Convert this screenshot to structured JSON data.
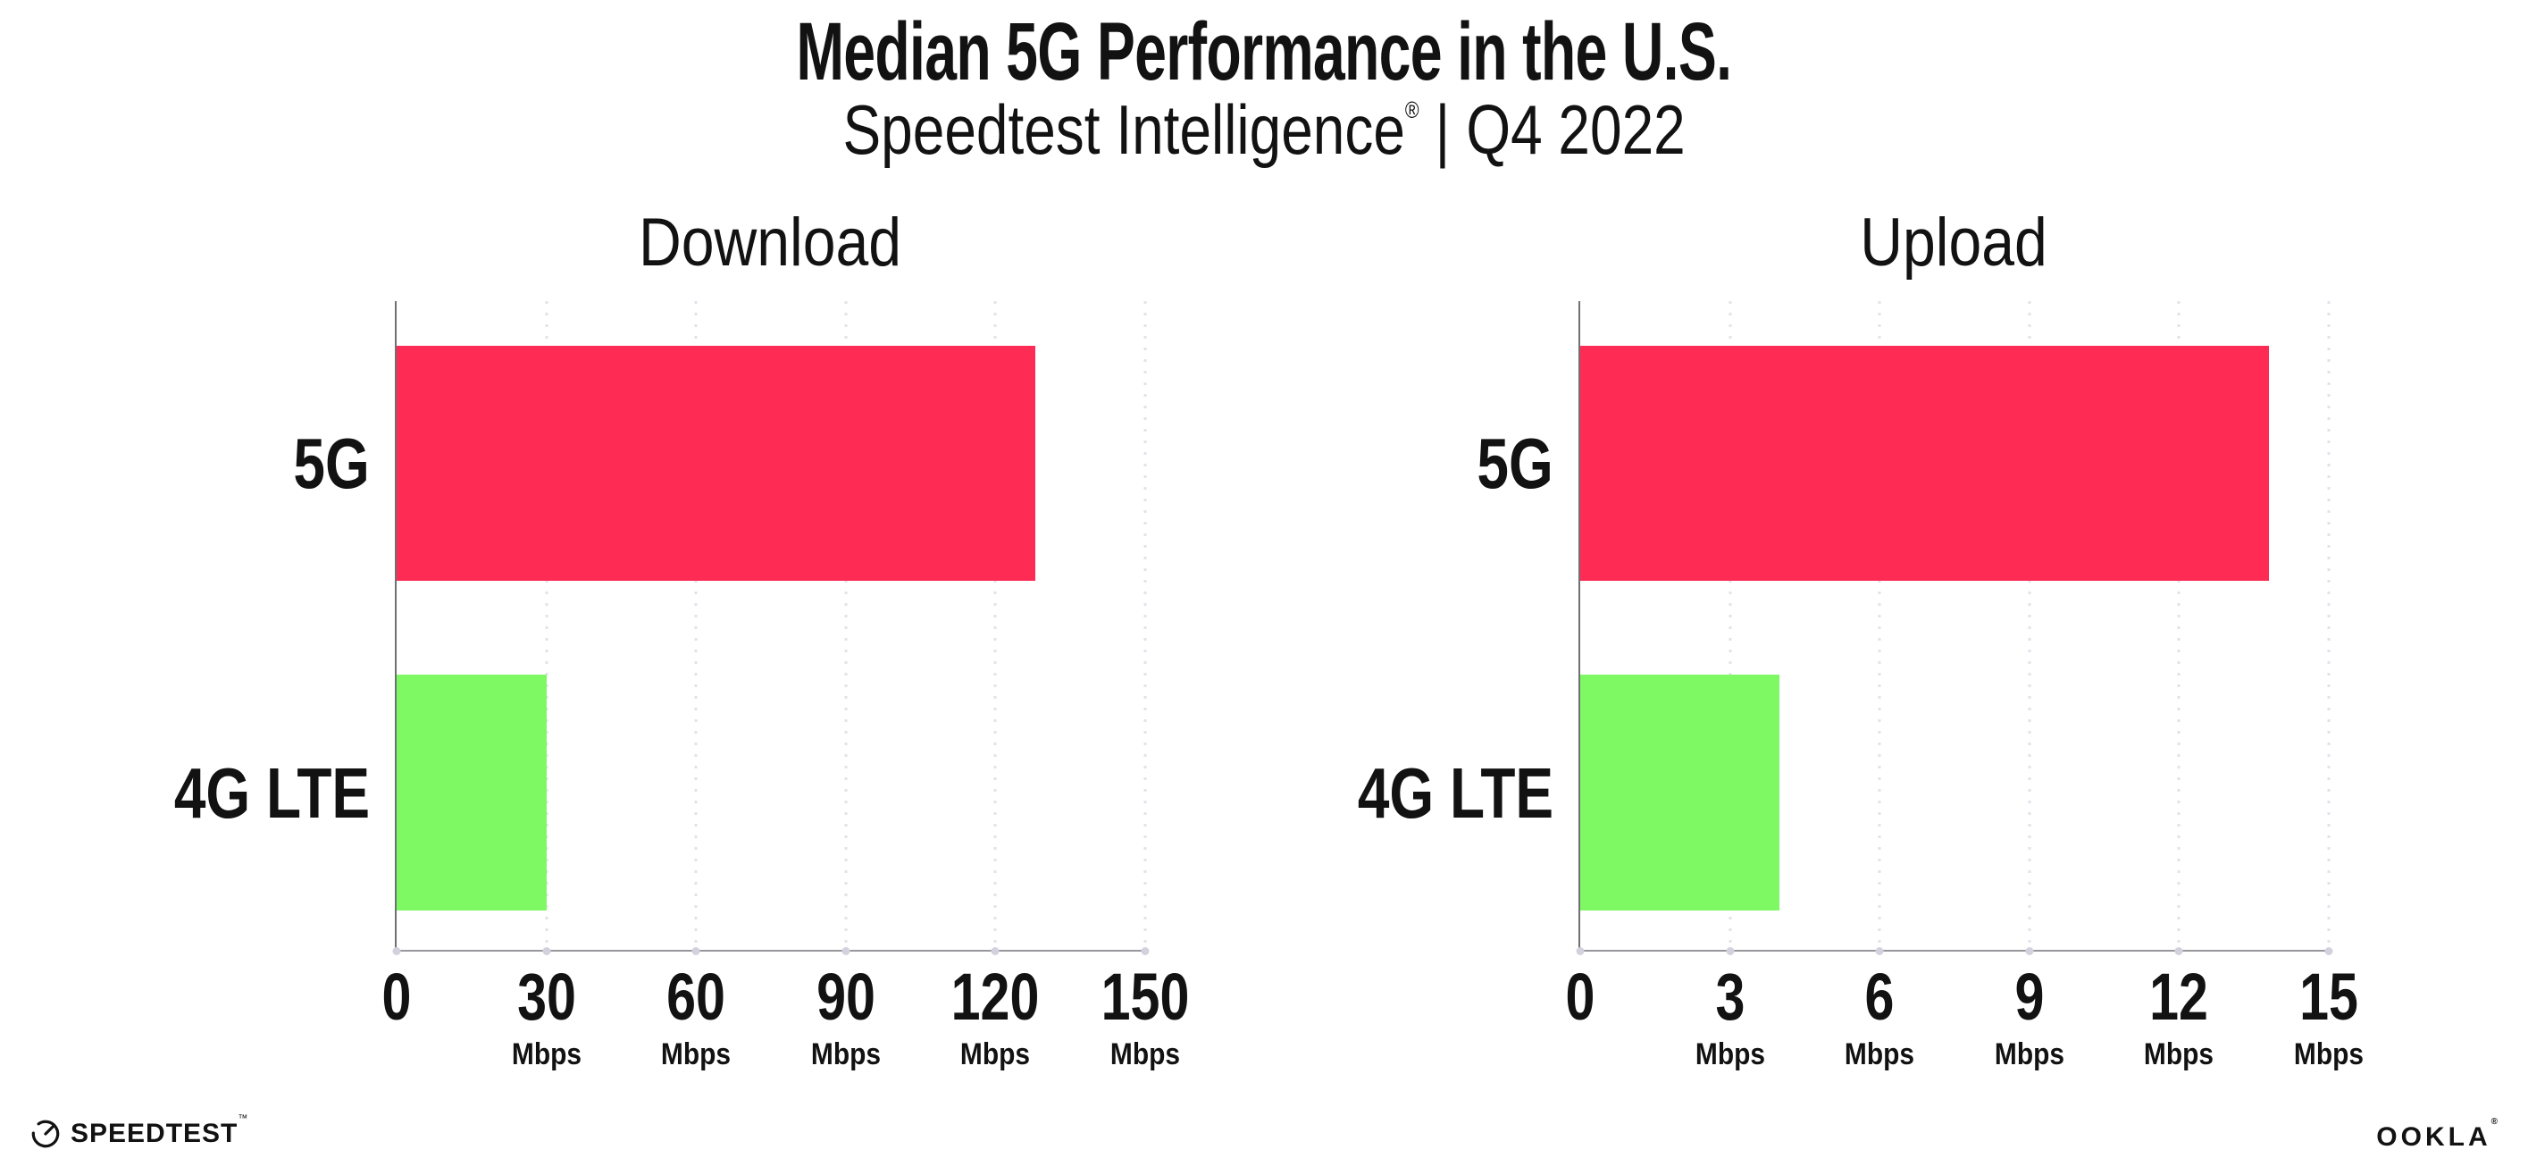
{
  "header": {
    "title": "Median 5G Performance in the U.S.",
    "subtitle_brand": "Speedtest Intelligence",
    "subtitle_reg": "®",
    "subtitle_divider": "|",
    "subtitle_period": "Q4 2022"
  },
  "chart_data": [
    {
      "type": "bar",
      "orientation": "horizontal",
      "title": "Download",
      "categories": [
        "5G",
        "4G LTE"
      ],
      "values": [
        128,
        30
      ],
      "unit": "Mbps",
      "xlim": [
        0,
        150
      ],
      "xticks": [
        0,
        30,
        60,
        90,
        120,
        150
      ],
      "grid": "dotted vertical gridlines at each tick",
      "legend": "none",
      "bar_colors": [
        "#FE2C55",
        "#7FF963"
      ]
    },
    {
      "type": "bar",
      "orientation": "horizontal",
      "title": "Upload",
      "categories": [
        "5G",
        "4G LTE"
      ],
      "values": [
        13.8,
        4
      ],
      "unit": "Mbps",
      "xlim": [
        0,
        15
      ],
      "xticks": [
        0,
        3,
        6,
        9,
        12,
        15
      ],
      "grid": "dotted vertical gridlines at each tick",
      "legend": "none",
      "bar_colors": [
        "#FE2C55",
        "#7FF963"
      ]
    }
  ],
  "footer": {
    "speedtest_label": "SPEEDTEST",
    "speedtest_mark": "™",
    "ookla_label": "OOKLA",
    "ookla_mark": "®"
  },
  "colors": {
    "bar_5g": "#FE2C55",
    "bar_4g_lte": "#7FF963",
    "gridline": "#E2E2EC",
    "tick_dot": "#D2D2DF",
    "axis_left": "#6F6F74",
    "axis_bottom": "#97979C",
    "text": "#121212"
  }
}
